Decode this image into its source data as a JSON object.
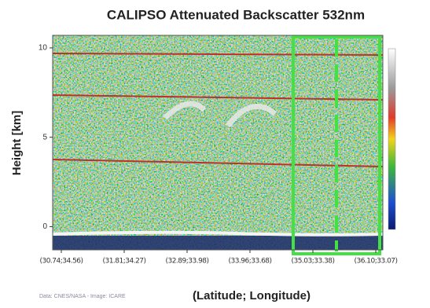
{
  "chart_data": {
    "type": "curtain",
    "title": "CALIPSO Attenuated Backscatter 532nm",
    "y_label": "Height [km]",
    "x_label": "(Latitude; Longitude)",
    "credit": "Data: CNES/NASA - Image: ICARE",
    "categories": [
      "(30.74;34.56)",
      "(31.81;34.27)",
      "(32.89;33.98)",
      "(33.96;33.68)",
      "(35.03;33.38)",
      "(36.10;33.07)"
    ],
    "ylim": [
      -1.3,
      10.7
    ],
    "yticks": [
      0,
      5,
      10
    ]
  }
}
